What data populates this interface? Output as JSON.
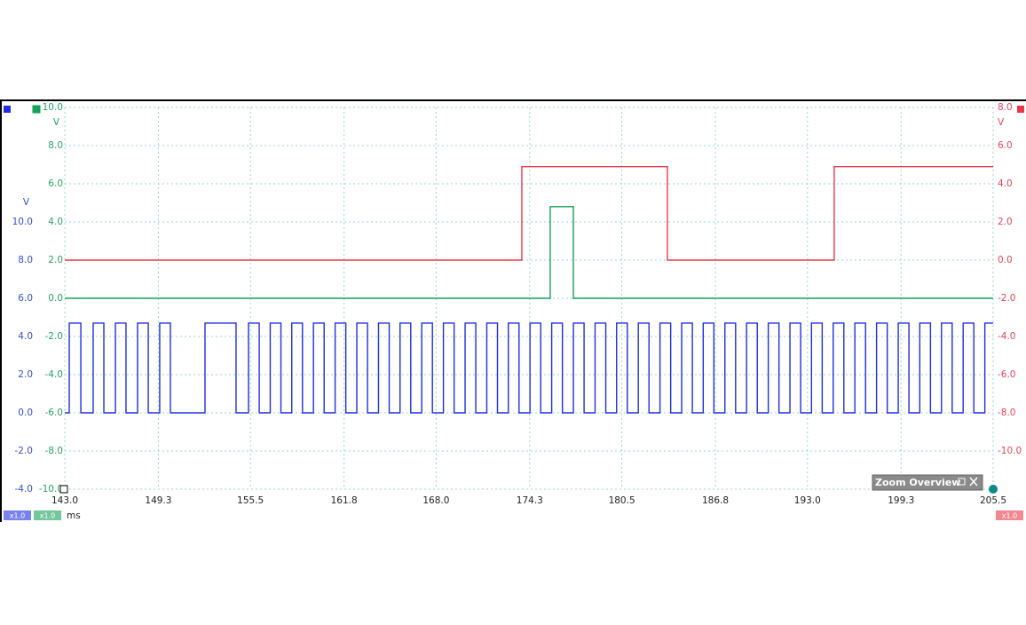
{
  "chart_data": {
    "type": "line",
    "step": "post",
    "grid": true,
    "x_unit": "ms",
    "xlim": [
      143.0,
      205.5
    ],
    "xticks": [
      {
        "value": 143,
        "label": "143.0"
      },
      149.3,
      155.5,
      161.8,
      {
        "value": 168,
        "label": "168.0"
      },
      174.3,
      180.5,
      186.8,
      {
        "value": 193,
        "label": "193.0"
      },
      199.3,
      205.5
    ],
    "series": [
      {
        "color": "#1f2fe0",
        "unit": "V",
        "scale_label": "x1.0",
        "ylim": [
          -4,
          16
        ],
        "yticks": [
          {
            "value": 10,
            "label": "10.0"
          },
          {
            "value": 8,
            "label": "8.0"
          },
          {
            "value": 6,
            "label": "6.0"
          },
          {
            "value": 4,
            "label": "4.0"
          },
          {
            "value": 2,
            "label": "2.0"
          },
          {
            "value": 0,
            "label": "0.0"
          },
          {
            "value": -2,
            "label": "-2.0"
          },
          {
            "value": -4,
            "label": "-4.0"
          }
        ],
        "x": [
          143.0,
          143.3,
          144.08,
          144.91,
          145.63,
          146.41,
          147.12,
          147.9,
          148.62,
          149.39,
          150.11,
          152.44,
          154.53,
          155.37,
          156.09,
          156.83,
          157.55,
          158.28,
          159.0,
          159.74,
          160.46,
          161.2,
          161.92,
          162.66,
          163.38,
          164.12,
          164.84,
          165.57,
          166.29,
          167.03,
          167.75,
          168.49,
          169.21,
          169.95,
          170.67,
          171.41,
          172.13,
          172.86,
          173.58,
          174.32,
          175.04,
          175.78,
          176.5,
          177.24,
          177.96,
          178.7,
          179.42,
          180.15,
          180.87,
          181.61,
          182.33,
          183.07,
          183.79,
          184.53,
          185.25,
          185.98,
          186.7,
          187.44,
          188.16,
          188.9,
          189.62,
          190.36,
          191.08,
          191.82,
          192.54,
          193.27,
          193.99,
          194.73,
          195.45,
          196.19,
          196.91,
          197.65,
          198.37,
          199.11,
          199.83,
          200.56,
          201.28,
          202.02,
          202.74,
          203.48,
          204.2,
          204.94,
          205.5
        ],
        "values": [
          0,
          4.7,
          0,
          4.7,
          0,
          4.7,
          0,
          4.7,
          0,
          4.7,
          0,
          4.7,
          0,
          4.7,
          0,
          4.7,
          0,
          4.7,
          0,
          4.7,
          0,
          4.7,
          0,
          4.7,
          0,
          4.7,
          0,
          4.7,
          0,
          4.7,
          0,
          4.7,
          0,
          4.7,
          0,
          4.7,
          0,
          4.7,
          0,
          4.7,
          0,
          4.7,
          0,
          4.7,
          0,
          4.7,
          0,
          4.7,
          0,
          4.7,
          0,
          4.7,
          0,
          4.7,
          0,
          4.7,
          0,
          4.7,
          0,
          4.7,
          0,
          4.7,
          0,
          4.7,
          0,
          4.7,
          0,
          4.7,
          0,
          4.7,
          0,
          4.7,
          0,
          4.7,
          0,
          4.7,
          0,
          4.7,
          0,
          4.7,
          0,
          4.7,
          4.7
        ]
      },
      {
        "color": "#17a05a",
        "unit": "V",
        "scale_label": "x1.0",
        "ylim": [
          -10,
          10
        ],
        "yticks": [
          {
            "value": 10,
            "label": "10.0"
          },
          {
            "value": 8,
            "label": "8.0"
          },
          {
            "value": 6,
            "label": "6.0"
          },
          {
            "value": 4,
            "label": "4.0"
          },
          {
            "value": 2,
            "label": "2.0"
          },
          {
            "value": 0,
            "label": "0.0"
          },
          {
            "value": -2,
            "label": "-2.0"
          },
          {
            "value": -4,
            "label": "-4.0"
          },
          {
            "value": -6,
            "label": "-6.0"
          },
          {
            "value": -8,
            "label": "-8.0"
          },
          {
            "value": -10,
            "label": "-10.0"
          }
        ],
        "x": [
          143.0,
          175.68,
          177.24,
          205.5
        ],
        "values": [
          0,
          4.8,
          0,
          0
        ]
      },
      {
        "color": "#e8394a",
        "unit": "V",
        "scale_label": "x1.0",
        "ylim": [
          -12,
          8
        ],
        "yticks": [
          {
            "value": 8,
            "label": "8.0"
          },
          {
            "value": 6,
            "label": "6.0"
          },
          {
            "value": 4,
            "label": "4.0"
          },
          {
            "value": 2,
            "label": "2.0"
          },
          {
            "value": 0,
            "label": "0.0"
          },
          {
            "value": -2,
            "label": "-2.0"
          },
          {
            "value": -4,
            "label": "-4.0"
          },
          {
            "value": -6,
            "label": "-6.0"
          },
          {
            "value": -8,
            "label": "-8.0"
          },
          {
            "value": -10,
            "label": "-10.0"
          }
        ],
        "x": [
          143.0,
          173.77,
          183.57,
          194.8,
          205.5
        ],
        "values": [
          0,
          4.9,
          0,
          4.9,
          4.9
        ]
      }
    ]
  },
  "zoom_overview": {
    "title": "Zoom Overview"
  }
}
